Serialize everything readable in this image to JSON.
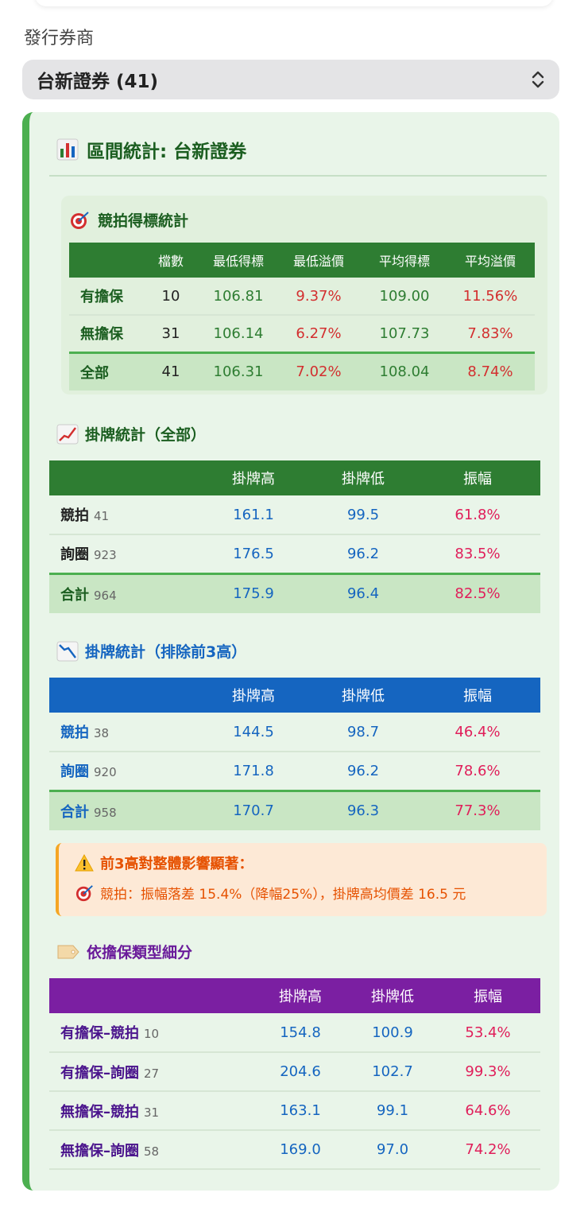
{
  "issuer_label": "發行券商",
  "issuer_select": {
    "value": "台新證券 (41)"
  },
  "panel": {
    "title": "區間統計: 台新證券",
    "auction": {
      "title": "競拍得標統計",
      "headers": [
        "",
        "檔數",
        "最低得標",
        "最低溢價",
        "平均得標",
        "平均溢價"
      ],
      "rows": [
        {
          "label": "有擔保",
          "count": "10",
          "min_bid": "106.81",
          "min_premium": "9.37%",
          "avg_bid": "109.00",
          "avg_premium": "11.56%"
        },
        {
          "label": "無擔保",
          "count": "31",
          "min_bid": "106.14",
          "min_premium": "6.27%",
          "avg_bid": "107.73",
          "avg_premium": "7.83%"
        },
        {
          "label": "全部",
          "count": "41",
          "min_bid": "106.31",
          "min_premium": "7.02%",
          "avg_bid": "108.04",
          "avg_premium": "8.74%"
        }
      ]
    },
    "listing_all": {
      "title": "掛牌統計（全部）",
      "headers": [
        "",
        "掛牌高",
        "掛牌低",
        "振幅"
      ],
      "rows": [
        {
          "label": "競拍",
          "count": "41",
          "high": "161.1",
          "low": "99.5",
          "amp": "61.8%"
        },
        {
          "label": "詢圈",
          "count": "923",
          "high": "176.5",
          "low": "96.2",
          "amp": "83.5%"
        },
        {
          "label": "合計",
          "count": "964",
          "high": "175.9",
          "low": "96.4",
          "amp": "82.5%"
        }
      ]
    },
    "listing_excl": {
      "title": "掛牌統計（排除前3高）",
      "headers": [
        "",
        "掛牌高",
        "掛牌低",
        "振幅"
      ],
      "rows": [
        {
          "label": "競拍",
          "count": "38",
          "high": "144.5",
          "low": "98.7",
          "amp": "46.4%"
        },
        {
          "label": "詢圈",
          "count": "920",
          "high": "171.8",
          "low": "96.2",
          "amp": "78.6%"
        },
        {
          "label": "合計",
          "count": "958",
          "high": "170.7",
          "low": "96.3",
          "amp": "77.3%"
        }
      ]
    },
    "warning": {
      "title": "前3高對整體影響顯著：",
      "line": "競拍：振幅落差 15.4%（降幅25%），掛牌高均價差 16.5 元"
    },
    "by_collateral": {
      "title": "依擔保類型細分",
      "headers": [
        "",
        "掛牌高",
        "掛牌低",
        "振幅"
      ],
      "rows": [
        {
          "label": "有擔保–競拍",
          "count": "10",
          "high": "154.8",
          "low": "100.9",
          "amp": "53.4%"
        },
        {
          "label": "有擔保–詢圈",
          "count": "27",
          "high": "204.6",
          "low": "102.7",
          "amp": "99.3%"
        },
        {
          "label": "無擔保–競拍",
          "count": "31",
          "high": "163.1",
          "low": "99.1",
          "amp": "64.6%"
        },
        {
          "label": "無擔保–詢圈",
          "count": "58",
          "high": "169.0",
          "low": "97.0",
          "amp": "74.2%"
        }
      ]
    }
  },
  "colors": {
    "green_header": "#2e7d32",
    "blue_header": "#1565c0",
    "purple_header": "#7b1fa2",
    "accent_border": "#4caf50",
    "warning_text": "#e65100"
  }
}
